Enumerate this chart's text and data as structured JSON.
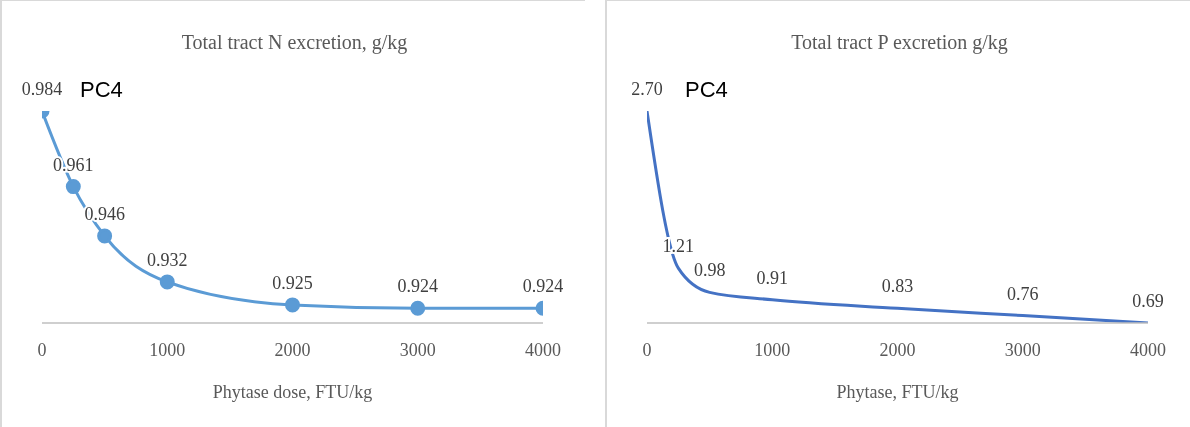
{
  "chart_data": [
    {
      "type": "line",
      "title": "Total tract N excretion, g/kg",
      "xlabel": "Phytase dose, FTU/kg",
      "annotations": [
        "PC4"
      ],
      "x": [
        0,
        250,
        500,
        1000,
        2000,
        3000,
        4000
      ],
      "series": [
        {
          "color": "#5b9bd5",
          "values": [
            0.984,
            0.961,
            0.946,
            0.932,
            0.925,
            0.924,
            0.924
          ],
          "value_labels": [
            "0.984",
            "0.961",
            "0.946",
            "0.932",
            "0.925",
            "0.924",
            "0.924"
          ]
        }
      ],
      "xlim": [
        0,
        4000
      ],
      "xticks": [
        0,
        1000,
        2000,
        3000,
        4000
      ],
      "tick_labels": "x",
      "marker": "circle",
      "legend": false,
      "grid": false
    },
    {
      "type": "line",
      "title": "Total tract P excretion g/kg",
      "xlabel": "Phytase, FTU/kg",
      "annotations": [
        "PC4"
      ],
      "x": [
        0,
        250,
        500,
        1000,
        2000,
        3000,
        4000
      ],
      "series": [
        {
          "color": "#4472c4",
          "values": [
            2.7,
            1.21,
            0.98,
            0.91,
            0.83,
            0.76,
            0.69
          ],
          "value_labels": [
            "2.70",
            "1.21",
            "0.98",
            "0.91",
            "0.83",
            "0.76",
            "0.69"
          ]
        }
      ],
      "xlim": [
        0,
        4000
      ],
      "xticks": [
        0,
        1000,
        2000,
        3000,
        4000
      ],
      "tick_labels": "x",
      "marker": "none",
      "legend": false,
      "grid": false
    }
  ]
}
